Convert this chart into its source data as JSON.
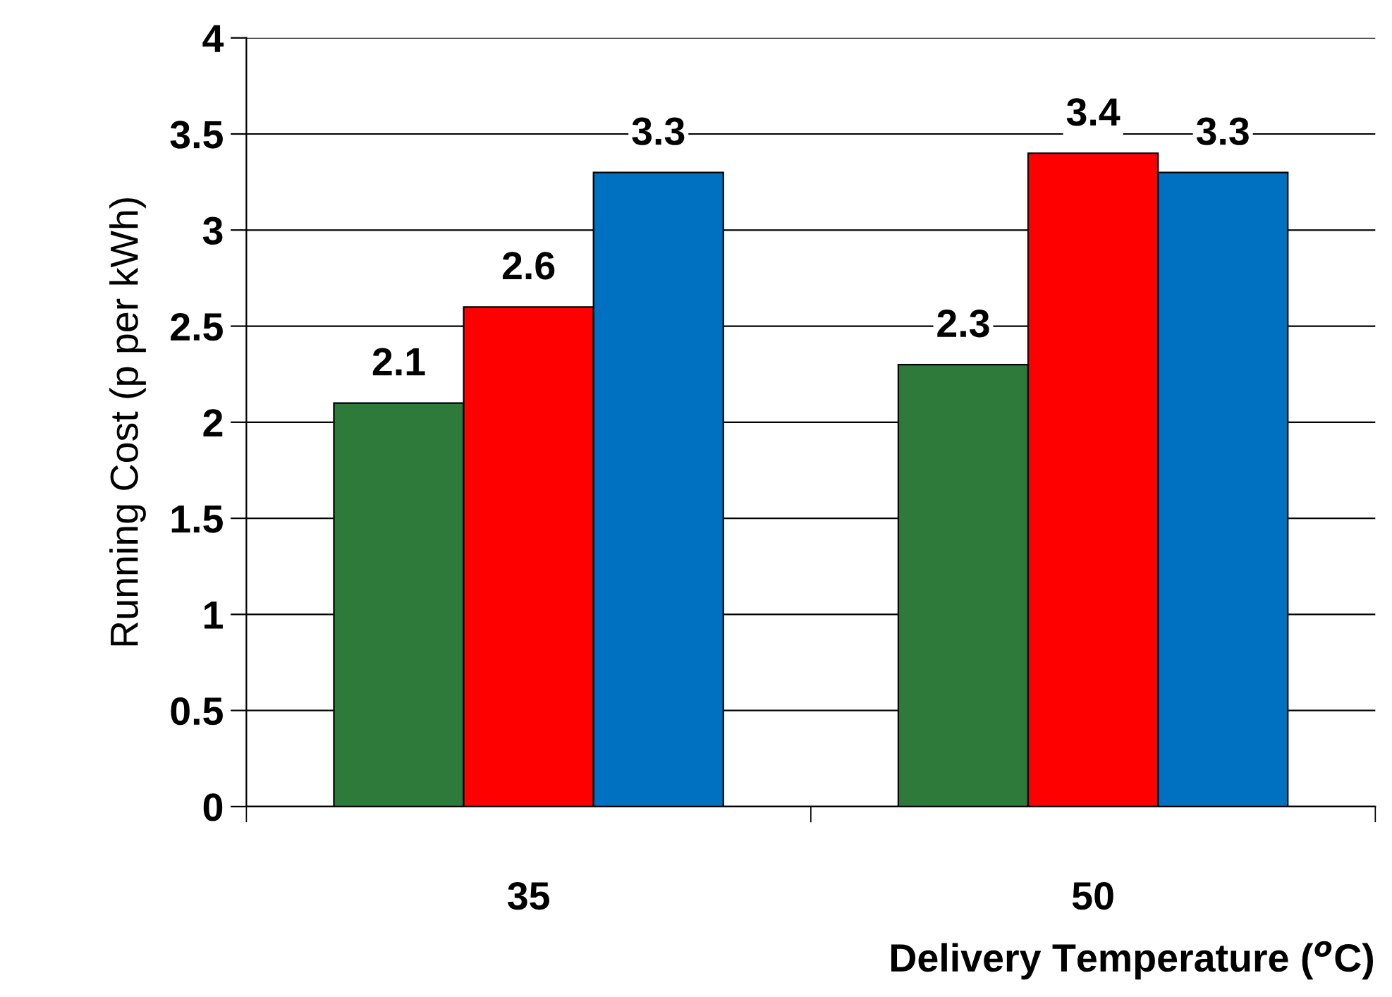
{
  "chart_data": {
    "type": "bar",
    "xlabel": "Delivery Temperature ($^{o}$C)",
    "ylabel": "Running Cost (p per kWh)",
    "categories": [
      "35",
      "50"
    ],
    "series": [
      {
        "color": "#2e7a3a",
        "values": [
          2.1,
          2.3
        ]
      },
      {
        "color": "#ff0000",
        "values": [
          2.6,
          3.4
        ]
      },
      {
        "color": "#0070c0",
        "values": [
          3.3,
          3.3
        ]
      }
    ],
    "ylim": [
      0,
      4
    ],
    "yticks": [
      0,
      0.5,
      1,
      1.5,
      2,
      2.5,
      3,
      3.5,
      4
    ],
    "grid": "y",
    "data_labels": true,
    "legend": false
  }
}
